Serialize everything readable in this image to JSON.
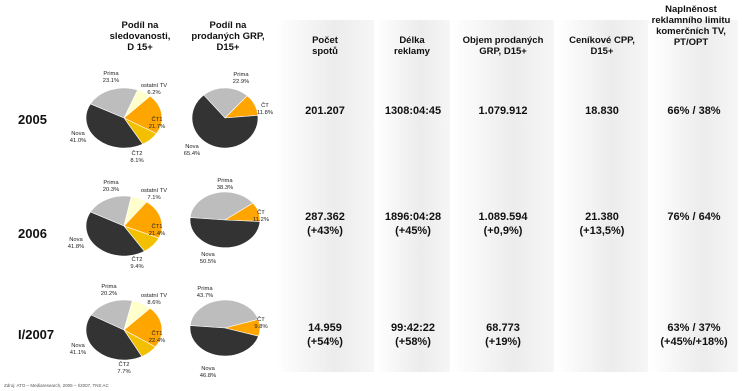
{
  "headers": [
    "Podíl na\nsledovanosti,\nD 15+",
    "Podíl na\nprodaných GRP,\nD15+",
    "Počet\nspotů",
    "Délka\nreklamy",
    "Objem prodaných\nGRP, D15+",
    "Ceníkové CPP,\nD15+",
    "Naplněnost\nreklamního limitu\nkomerčních TV,\nPT/OPT"
  ],
  "source": "Zdroj: ATO – Mediaresearch, 2005 – I/2007, TNS AC",
  "colors": {
    "Nova": "#333333",
    "Prima": "#bdbdbd",
    "ostatní TV": "#ffffcc",
    "ČT1": "#ffa500",
    "ČT2": "#f2c000",
    "ČT": "#ffa500"
  },
  "rows": [
    {
      "year": "2005",
      "spots": "201.207",
      "length": "1308:04:45",
      "grp": "1.079.912",
      "cpp": "18.830",
      "limit": "66% / 38%"
    },
    {
      "year": "2006",
      "spots": "287.362\n(+43%)",
      "length": "1896:04:28\n(+45%)",
      "grp": "1.089.594\n(+0,9%)",
      "cpp": "21.380\n(+13,5%)",
      "limit": "76% / 64%"
    },
    {
      "year": "I/2007",
      "spots": "14.959\n(+54%)",
      "length": "99:42:22\n(+58%)",
      "grp": "68.773\n(+19%)",
      "cpp": "",
      "limit": "63% / 37%\n(+45%/+18%)"
    }
  ],
  "chart_data": [
    {
      "type": "pie",
      "year": "2005",
      "series": [
        {
          "name": "Nova",
          "value": 41.0,
          "label": "Nova\n41.0%"
        },
        {
          "name": "Prima",
          "value": 23.1,
          "label": "Prima\n23.1%"
        },
        {
          "name": "ostatní TV",
          "value": 6.2,
          "label": "ostatní TV\n6.2%"
        },
        {
          "name": "ČT1",
          "value": 21.7,
          "label": "ČT1\n21.7%"
        },
        {
          "name": "ČT2",
          "value": 8.1,
          "label": "ČT2\n8.1%"
        }
      ]
    },
    {
      "type": "pie",
      "year": "2005",
      "series": [
        {
          "name": "Nova",
          "value": 65.4,
          "label": "Nova\n65.4%"
        },
        {
          "name": "Prima",
          "value": 22.9,
          "label": "Prima\n22.9%"
        },
        {
          "name": "ČT",
          "value": 11.8,
          "label": "ČT\n11.8%"
        }
      ]
    },
    {
      "type": "pie",
      "year": "2006",
      "series": [
        {
          "name": "Nova",
          "value": 41.8,
          "label": "Nova\n41.8%"
        },
        {
          "name": "Prima",
          "value": 20.3,
          "label": "Prima\n20.3%"
        },
        {
          "name": "ostatní TV",
          "value": 7.1,
          "label": "ostatní TV\n7.1%"
        },
        {
          "name": "ČT1",
          "value": 21.4,
          "label": "ČT1\n21.4%"
        },
        {
          "name": "ČT2",
          "value": 9.4,
          "label": "ČT2\n9.4%"
        }
      ]
    },
    {
      "type": "pie",
      "year": "2006",
      "series": [
        {
          "name": "Nova",
          "value": 50.5,
          "label": "Nova\n50.5%"
        },
        {
          "name": "Prima",
          "value": 38.3,
          "label": "Prima\n38.3%"
        },
        {
          "name": "ČT",
          "value": 11.2,
          "label": "ČT\n11.2%"
        }
      ]
    },
    {
      "type": "pie",
      "year": "I/2007",
      "series": [
        {
          "name": "Nova",
          "value": 41.1,
          "label": "Nova\n41.1%"
        },
        {
          "name": "Prima",
          "value": 20.2,
          "label": "Prima\n20.2%"
        },
        {
          "name": "ostatní TV",
          "value": 8.6,
          "label": "ostatní TV\n8.6%"
        },
        {
          "name": "ČT1",
          "value": 22.4,
          "label": "ČT1\n22.4%"
        },
        {
          "name": "ČT2",
          "value": 7.7,
          "label": "ČT2\n7.7%"
        }
      ]
    },
    {
      "type": "pie",
      "year": "I/2007",
      "series": [
        {
          "name": "Nova",
          "value": 46.8,
          "label": "Nova\n46.8%"
        },
        {
          "name": "Prima",
          "value": 43.7,
          "label": "Prima\n43.7%"
        },
        {
          "name": "ČT",
          "value": 9.8,
          "label": "ČT\n9.8%"
        }
      ]
    }
  ]
}
